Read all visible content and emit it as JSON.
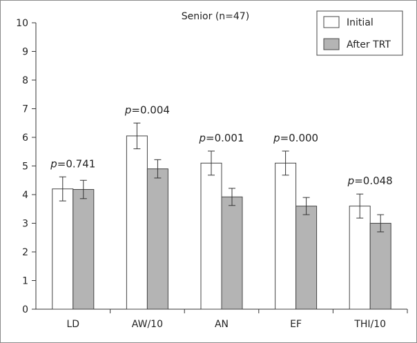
{
  "chart_data": {
    "type": "bar",
    "title": "Senior (n=47)",
    "categories": [
      "LD",
      "AW/10",
      "AN",
      "EF",
      "THI/10"
    ],
    "series": [
      {
        "name": "Initial",
        "values": [
          4.2,
          6.05,
          5.1,
          5.1,
          3.6
        ],
        "errors": [
          0.42,
          0.45,
          0.42,
          0.42,
          0.42
        ],
        "color": "#ffffff"
      },
      {
        "name": "After TRT",
        "values": [
          4.18,
          4.9,
          3.92,
          3.6,
          3.0
        ],
        "errors": [
          0.32,
          0.32,
          0.3,
          0.3,
          0.3
        ],
        "color": "#b4b4b4"
      }
    ],
    "annotations": [
      {
        "category": "LD",
        "prefix": "p",
        "text": "=0.741"
      },
      {
        "category": "AW/10",
        "prefix": "p",
        "text": "=0.004"
      },
      {
        "category": "AN",
        "prefix": "p",
        "text": "=0.001"
      },
      {
        "category": "EF",
        "prefix": "p",
        "text": "=0.000"
      },
      {
        "category": "THI/10",
        "prefix": "p",
        "text": "=0.048"
      }
    ],
    "ylim": [
      0,
      10
    ],
    "yticks": [
      0,
      1,
      2,
      3,
      4,
      5,
      6,
      7,
      8,
      9,
      10
    ],
    "legend_position": "top-right",
    "grid": false
  }
}
